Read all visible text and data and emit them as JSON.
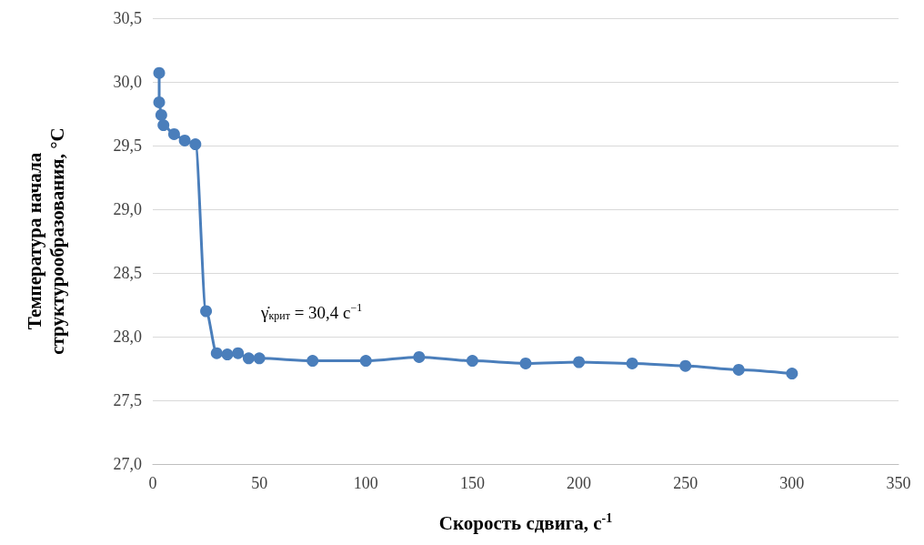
{
  "chart_data": {
    "type": "line",
    "xlabel": "Скорость сдвига, с$^{-1}$",
    "ylabel": "Температура начала структурообразования, °C",
    "x": [
      3,
      3,
      4,
      5,
      10,
      15,
      20,
      25,
      30,
      35,
      40,
      45,
      50,
      75,
      100,
      125,
      150,
      175,
      200,
      225,
      250,
      275,
      300
    ],
    "series": [
      {
        "color": "#4a7ebb",
        "values": [
          30.07,
          29.84,
          29.74,
          29.66,
          29.59,
          29.54,
          29.51,
          28.2,
          27.87,
          27.86,
          27.87,
          27.83,
          27.83,
          27.81,
          27.81,
          27.84,
          27.81,
          27.79,
          27.8,
          27.79,
          27.77,
          27.74,
          27.71
        ]
      }
    ],
    "annotations": [
      "γ̇$_{крит}$ = 30,4 с$^{−1}$"
    ],
    "xlim": [
      0,
      350
    ],
    "xticks": [
      0,
      50,
      100,
      150,
      200,
      250,
      300,
      350
    ],
    "ylim": [
      27,
      30.5
    ],
    "yticks": [
      {
        "value": 27,
        "label": "27,0"
      },
      {
        "value": 27.5,
        "label": "27,5"
      },
      {
        "value": 28,
        "label": "28,0"
      },
      {
        "value": 28.5,
        "label": "28,5"
      },
      {
        "value": 29,
        "label": "29,0"
      },
      {
        "value": 29.5,
        "label": "29,5"
      },
      {
        "value": 30,
        "label": "30,0"
      },
      {
        "value": 30.5,
        "label": "30,5"
      }
    ],
    "grid": "y",
    "marker": "circle",
    "line_style": "solid"
  }
}
